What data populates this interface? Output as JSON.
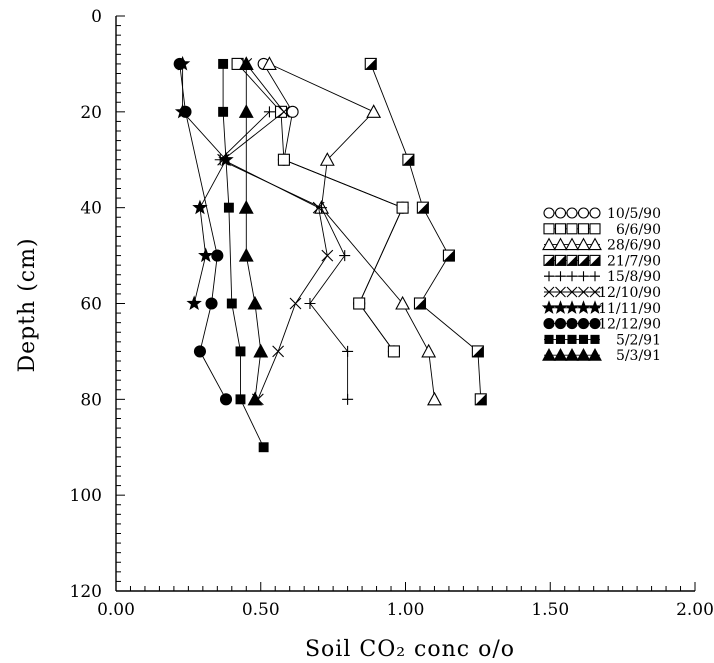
{
  "chart_data": {
    "type": "line",
    "xlabel": "Soil CO₂ conc o/o",
    "ylabel": "Depth (cm)",
    "xlim": [
      0,
      2
    ],
    "ylim": [
      0,
      120
    ],
    "y_inverted": true,
    "x_ticks": [
      "0.00",
      "0.50",
      "1.00",
      "1.50",
      "2.00"
    ],
    "y_ticks": [
      "0",
      "20",
      "40",
      "60",
      "80",
      "100",
      "120"
    ],
    "legend_position": "right",
    "series": [
      {
        "name": "10/5/90",
        "marker": "circle-open",
        "points": [
          [
            0.51,
            10
          ],
          [
            0.61,
            20
          ],
          [
            0.58,
            30
          ],
          [
            0.99,
            40
          ],
          [
            0.84,
            60
          ],
          [
            0.96,
            70
          ]
        ]
      },
      {
        "name": "6/6/90",
        "marker": "square-open",
        "points": [
          [
            0.42,
            10
          ],
          [
            0.57,
            20
          ],
          [
            0.58,
            30
          ],
          [
            0.99,
            40
          ],
          [
            0.84,
            60
          ],
          [
            0.96,
            70
          ]
        ]
      },
      {
        "name": "28/6/90",
        "marker": "triangle-open",
        "points": [
          [
            0.53,
            10
          ],
          [
            0.89,
            20
          ],
          [
            0.73,
            30
          ],
          [
            0.71,
            40
          ],
          [
            0.99,
            60
          ],
          [
            1.08,
            70
          ],
          [
            1.1,
            80
          ]
        ]
      },
      {
        "name": "21/7/90",
        "marker": "square-half",
        "points": [
          [
            0.88,
            10
          ],
          [
            1.01,
            30
          ],
          [
            1.06,
            40
          ],
          [
            1.15,
            50
          ],
          [
            1.05,
            60
          ],
          [
            1.25,
            70
          ],
          [
            1.26,
            80
          ]
        ]
      },
      {
        "name": "15/8/90",
        "marker": "plus",
        "points": [
          [
            0.53,
            20
          ],
          [
            0.36,
            30
          ],
          [
            0.71,
            40
          ],
          [
            0.79,
            50
          ],
          [
            0.67,
            60
          ],
          [
            0.8,
            70
          ],
          [
            0.8,
            80
          ]
        ]
      },
      {
        "name": "12/10/90",
        "marker": "x",
        "points": [
          [
            0.45,
            10
          ],
          [
            0.58,
            20
          ],
          [
            0.37,
            30
          ],
          [
            0.7,
            40
          ],
          [
            0.73,
            50
          ],
          [
            0.62,
            60
          ],
          [
            0.56,
            70
          ],
          [
            0.49,
            80
          ]
        ]
      },
      {
        "name": "11/11/90",
        "marker": "star",
        "points": [
          [
            0.23,
            10
          ],
          [
            0.23,
            20
          ],
          [
            0.38,
            30
          ],
          [
            0.29,
            40
          ],
          [
            0.31,
            50
          ],
          [
            0.27,
            60
          ]
        ]
      },
      {
        "name": "12/12/90",
        "marker": "circle-filled",
        "points": [
          [
            0.22,
            10
          ],
          [
            0.24,
            20
          ],
          [
            0.35,
            50
          ],
          [
            0.33,
            60
          ],
          [
            0.29,
            70
          ],
          [
            0.38,
            80
          ]
        ]
      },
      {
        "name": "5/2/91",
        "marker": "square-filled",
        "points": [
          [
            0.37,
            10
          ],
          [
            0.37,
            20
          ],
          [
            0.39,
            40
          ],
          [
            0.4,
            60
          ],
          [
            0.43,
            70
          ],
          [
            0.43,
            80
          ],
          [
            0.51,
            90
          ]
        ]
      },
      {
        "name": "5/3/91",
        "marker": "triangle-filled",
        "points": [
          [
            0.45,
            10
          ],
          [
            0.45,
            20
          ],
          [
            0.45,
            40
          ],
          [
            0.45,
            50
          ],
          [
            0.48,
            60
          ],
          [
            0.5,
            70
          ],
          [
            0.48,
            80
          ]
        ]
      }
    ]
  }
}
